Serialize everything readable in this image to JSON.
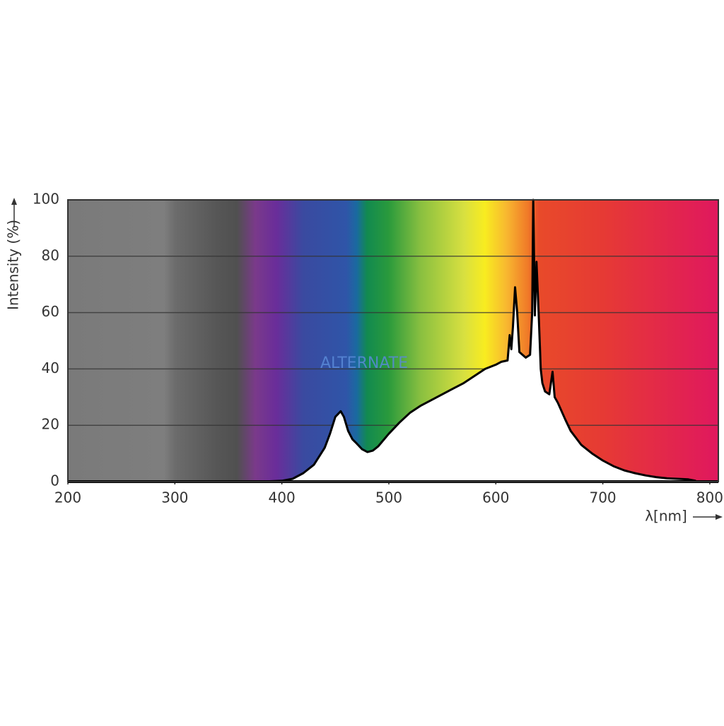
{
  "chart_data": {
    "type": "area",
    "y_label": "Intensity (%)",
    "x_label": "λ[nm]",
    "watermark": "ALTERNATE",
    "xlim": [
      200,
      808
    ],
    "xticks": [
      200,
      300,
      400,
      500,
      600,
      700,
      800
    ],
    "ylim": [
      0,
      100
    ],
    "yticks": [
      0,
      20,
      40,
      60,
      80,
      100
    ],
    "grid": true,
    "color": "#ffffff",
    "x": [
      380,
      400,
      410,
      420,
      430,
      440,
      445,
      450,
      455,
      458,
      462,
      466,
      470,
      475,
      480,
      485,
      490,
      500,
      510,
      520,
      530,
      540,
      550,
      560,
      570,
      580,
      590,
      600,
      605,
      611,
      613,
      614.5,
      616,
      618,
      620,
      622,
      628,
      632,
      634,
      635,
      636.5,
      638,
      640,
      642,
      643.5,
      646,
      650,
      653,
      655,
      658,
      665,
      670,
      680,
      690,
      700,
      710,
      720,
      730,
      740,
      750,
      760,
      770,
      780,
      787
    ],
    "values": [
      0,
      0.3,
      1,
      3,
      6,
      12,
      17,
      23,
      25,
      23,
      18,
      15,
      13.5,
      11.5,
      10.5,
      11,
      12.5,
      17,
      21,
      24.5,
      27,
      29,
      31,
      33,
      35,
      37.5,
      40,
      41.5,
      42.5,
      43,
      52,
      47,
      55,
      69,
      60,
      46,
      44,
      45,
      60,
      100,
      59,
      78,
      60,
      40,
      35,
      32,
      31,
      39,
      30,
      28,
      22,
      18,
      13,
      10,
      7.5,
      5.5,
      4,
      3,
      2.2,
      1.6,
      1.2,
      1,
      0.8,
      0.3
    ]
  }
}
